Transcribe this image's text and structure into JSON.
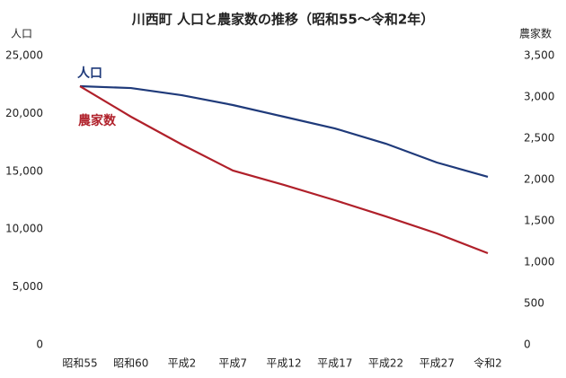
{
  "chart_data": {
    "type": "line",
    "title": "川西町 人口と農家数の推移（昭和55〜令和2年）",
    "y_label": "人口",
    "y2_label": "農家数",
    "categories": [
      "昭和55",
      "昭和60",
      "平成2",
      "平成7",
      "平成12",
      "平成17",
      "平成22",
      "平成27",
      "令和2"
    ],
    "series": [
      {
        "name": "人口",
        "color": "#1f3a7a",
        "values": [
          22360,
          22200,
          21580,
          20730,
          19720,
          18710,
          17390,
          15760,
          14520
        ]
      },
      {
        "name": "農家数",
        "color": "#b0202a",
        "axis": "y2",
        "values": [
          3130,
          2761,
          2424,
          2109,
          1935,
          1750,
          1554,
          1348,
          1109
        ]
      }
    ],
    "ylim": [
      0,
      25000
    ],
    "yticks": [
      0,
      {
        "value": 5000,
        "label": "5,000"
      },
      {
        "value": 10000,
        "label": "10,000"
      },
      {
        "value": 15000,
        "label": "15,000"
      },
      {
        "value": 20000,
        "label": "20,000"
      },
      {
        "value": 25000,
        "label": "25,000"
      }
    ],
    "y2lim": [
      0,
      3500
    ],
    "y2ticks": [
      0,
      500,
      {
        "value": 1000,
        "label": "1,000"
      },
      {
        "value": 1500,
        "label": "1,500"
      },
      {
        "value": 2000,
        "label": "2,000"
      },
      {
        "value": 2500,
        "label": "2,500"
      },
      {
        "value": 3000,
        "label": "3,000"
      },
      {
        "value": 3500,
        "label": "3,500"
      }
    ],
    "grid": false
  }
}
